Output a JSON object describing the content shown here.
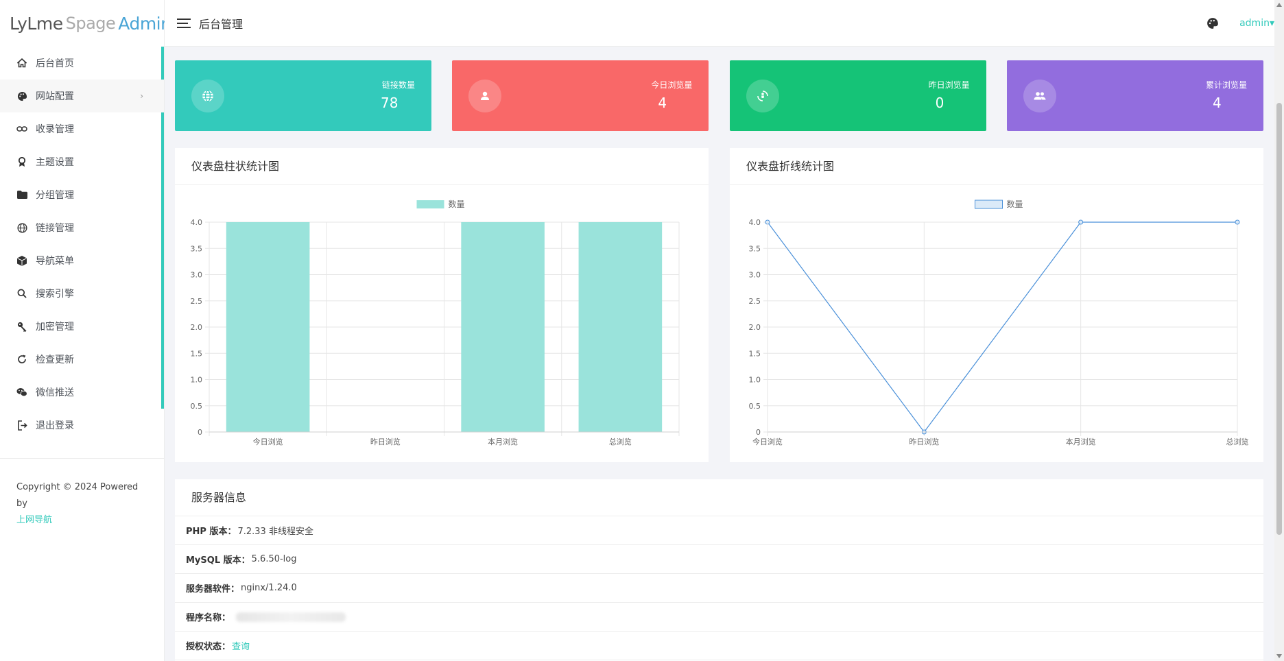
{
  "brand": {
    "part1": "LyLme",
    "part2": "Spage",
    "part3": "Admin"
  },
  "header": {
    "title": "后台管理",
    "user": "admin▾",
    "palette_icon": "palette-icon"
  },
  "sidebar": {
    "items": [
      {
        "label": "后台首页",
        "icon": "home-icon"
      },
      {
        "label": "网站配置",
        "icon": "palette-icon",
        "arrow": "›"
      },
      {
        "label": "收录管理",
        "icon": "link-icon"
      },
      {
        "label": "主题设置",
        "icon": "award-icon"
      },
      {
        "label": "分组管理",
        "icon": "folder-icon"
      },
      {
        "label": "链接管理",
        "icon": "globe-icon"
      },
      {
        "label": "导航菜单",
        "icon": "cube-icon"
      },
      {
        "label": "搜索引擎",
        "icon": "search-icon"
      },
      {
        "label": "加密管理",
        "icon": "key-icon"
      },
      {
        "label": "检查更新",
        "icon": "refresh-icon"
      },
      {
        "label": "微信推送",
        "icon": "wechat-icon"
      },
      {
        "label": "退出登录",
        "icon": "logout-icon"
      }
    ],
    "copyright": "Copyright © 2024 Powered by",
    "copyright_link": "上网导航"
  },
  "stats": [
    {
      "label": "链接数量",
      "value": "78",
      "color": "#33cabb",
      "icon": "globe-icon"
    },
    {
      "label": "今日浏览量",
      "value": "4",
      "color": "#f96868",
      "icon": "user-icon"
    },
    {
      "label": "昨日浏览量",
      "value": "0",
      "color": "#15c377",
      "icon": "walk-icon"
    },
    {
      "label": "累计浏览量",
      "value": "4",
      "color": "#926dde",
      "icon": "users-icon"
    }
  ],
  "bar_panel": {
    "title": "仪表盘柱状统计图"
  },
  "line_panel": {
    "title": "仪表盘折线统计图"
  },
  "chart_data": [
    {
      "type": "bar",
      "title": "",
      "categories": [
        "今日浏览",
        "昨日浏览",
        "本月浏览",
        "总浏览"
      ],
      "series": [
        {
          "name": "数量",
          "values": [
            4,
            0,
            4,
            4
          ],
          "color": "#9ae3db"
        }
      ],
      "ylim": [
        0,
        4
      ],
      "yticks": [
        "0",
        "0.5",
        "1.0",
        "1.5",
        "2.0",
        "2.5",
        "3.0",
        "3.5",
        "4.0"
      ],
      "grid": true,
      "legend": "top-center"
    },
    {
      "type": "line",
      "title": "",
      "categories": [
        "今日浏览",
        "昨日浏览",
        "本月浏览",
        "总浏览"
      ],
      "series": [
        {
          "name": "数量",
          "values": [
            4,
            0,
            4,
            4
          ],
          "color": "#4a90d9"
        }
      ],
      "ylim": [
        0,
        4
      ],
      "yticks": [
        "0",
        "0.5",
        "1.0",
        "1.5",
        "2.0",
        "2.5",
        "3.0",
        "3.5",
        "4.0"
      ],
      "grid": true,
      "legend": "top-center"
    }
  ],
  "server": {
    "title": "服务器信息",
    "rows": [
      {
        "label": "PHP 版本：",
        "value": "7.2.33 非线程安全"
      },
      {
        "label": "MySQL 版本：",
        "value": "5.6.50-log"
      },
      {
        "label": "服务器软件：",
        "value": "nginx/1.24.0"
      },
      {
        "label": "程序名称：",
        "value": ""
      },
      {
        "label": "授权状态：",
        "value": "查询"
      }
    ]
  }
}
